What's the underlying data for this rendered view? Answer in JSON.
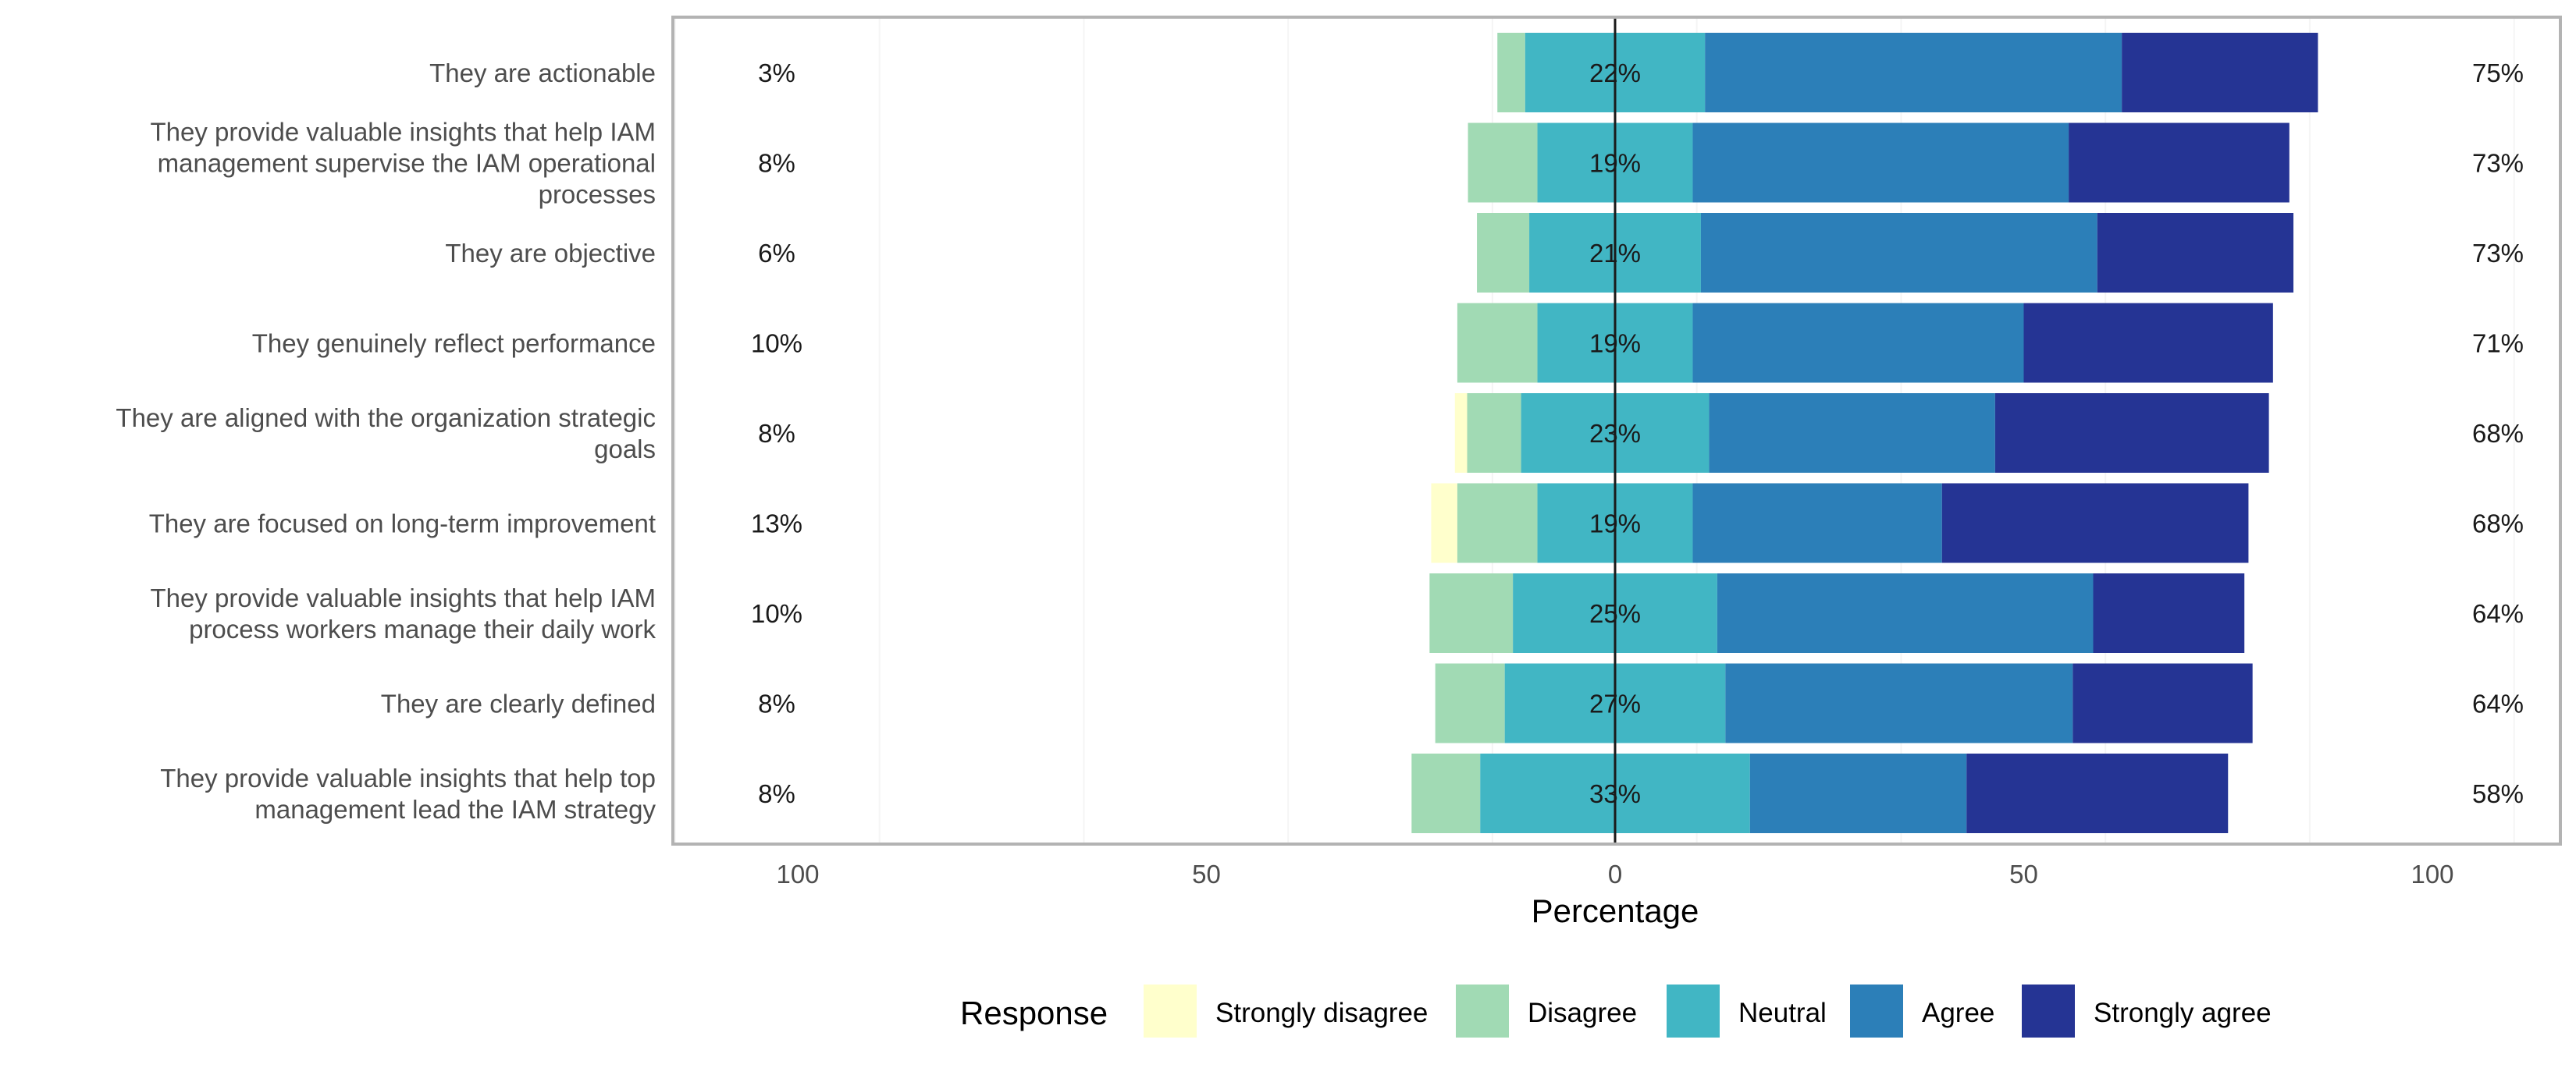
{
  "chart_data": {
    "type": "bar",
    "orientation": "horizontal",
    "stacking": "diverging",
    "xlabel": "Percentage",
    "xlim": [
      -115,
      115
    ],
    "xticks": [
      -100,
      -50,
      0,
      50,
      100
    ],
    "xtick_labels": [
      "100",
      "50",
      "0",
      "50",
      "100"
    ],
    "grid": true,
    "legend": {
      "title": "Response",
      "position": "bottom",
      "items": [
        {
          "name": "Strongly disagree",
          "color": "#ffffcc"
        },
        {
          "name": "Disagree",
          "color": "#a1dab4"
        },
        {
          "name": "Neutral",
          "color": "#41b6c4"
        },
        {
          "name": "Agree",
          "color": "#2c7fb8"
        },
        {
          "name": "Strongly agree",
          "color": "#253494"
        }
      ]
    },
    "categories": [
      "They are actionable",
      "They provide valuable insights that help IAM management supervise the IAM operational processes",
      "They are objective",
      "They genuinely reflect performance",
      "They are aligned with the organization strategic goals",
      "They are focused on long-term improvement",
      "They provide valuable insights that help IAM process workers manage their daily work",
      "They are clearly defined",
      "They provide valuable insights that help top management lead the IAM strategy"
    ],
    "category_lines": [
      [
        "They are actionable"
      ],
      [
        "They provide valuable insights that help IAM",
        "management supervise the IAM operational",
        "processes"
      ],
      [
        "They are objective"
      ],
      [
        "They genuinely reflect performance"
      ],
      [
        "They are aligned with the organization strategic",
        "goals"
      ],
      [
        "They are focused on long-term improvement"
      ],
      [
        "They provide valuable insights that help IAM",
        "process workers manage their daily work"
      ],
      [
        "They are clearly defined"
      ],
      [
        "They provide valuable insights that help top",
        "management lead the IAM strategy"
      ]
    ],
    "series": [
      {
        "name": "Strongly disagree",
        "values": [
          0,
          0,
          0,
          0,
          1.5,
          3.2,
          0,
          0,
          0
        ]
      },
      {
        "name": "Disagree",
        "values": [
          3.4,
          8.5,
          6.4,
          9.8,
          6.6,
          9.8,
          10.2,
          8.5,
          8.4
        ]
      },
      {
        "name": "Neutral",
        "values": [
          22,
          19,
          21,
          19,
          23,
          19,
          25,
          27,
          33
        ]
      },
      {
        "name": "Agree",
        "values": [
          51,
          46,
          48.5,
          40.5,
          35,
          30.5,
          46,
          42.5,
          26.5
        ]
      },
      {
        "name": "Strongly agree",
        "values": [
          24,
          27,
          24,
          30.5,
          33.5,
          37.5,
          18.5,
          22,
          32
        ]
      }
    ],
    "left_labels": [
      "3%",
      "8%",
      "6%",
      "10%",
      "8%",
      "13%",
      "10%",
      "8%",
      "8%"
    ],
    "center_labels": [
      "22%",
      "19%",
      "21%",
      "19%",
      "23%",
      "19%",
      "25%",
      "27%",
      "33%"
    ],
    "right_labels": [
      "75%",
      "73%",
      "73%",
      "71%",
      "68%",
      "68%",
      "64%",
      "64%",
      "58%"
    ]
  }
}
